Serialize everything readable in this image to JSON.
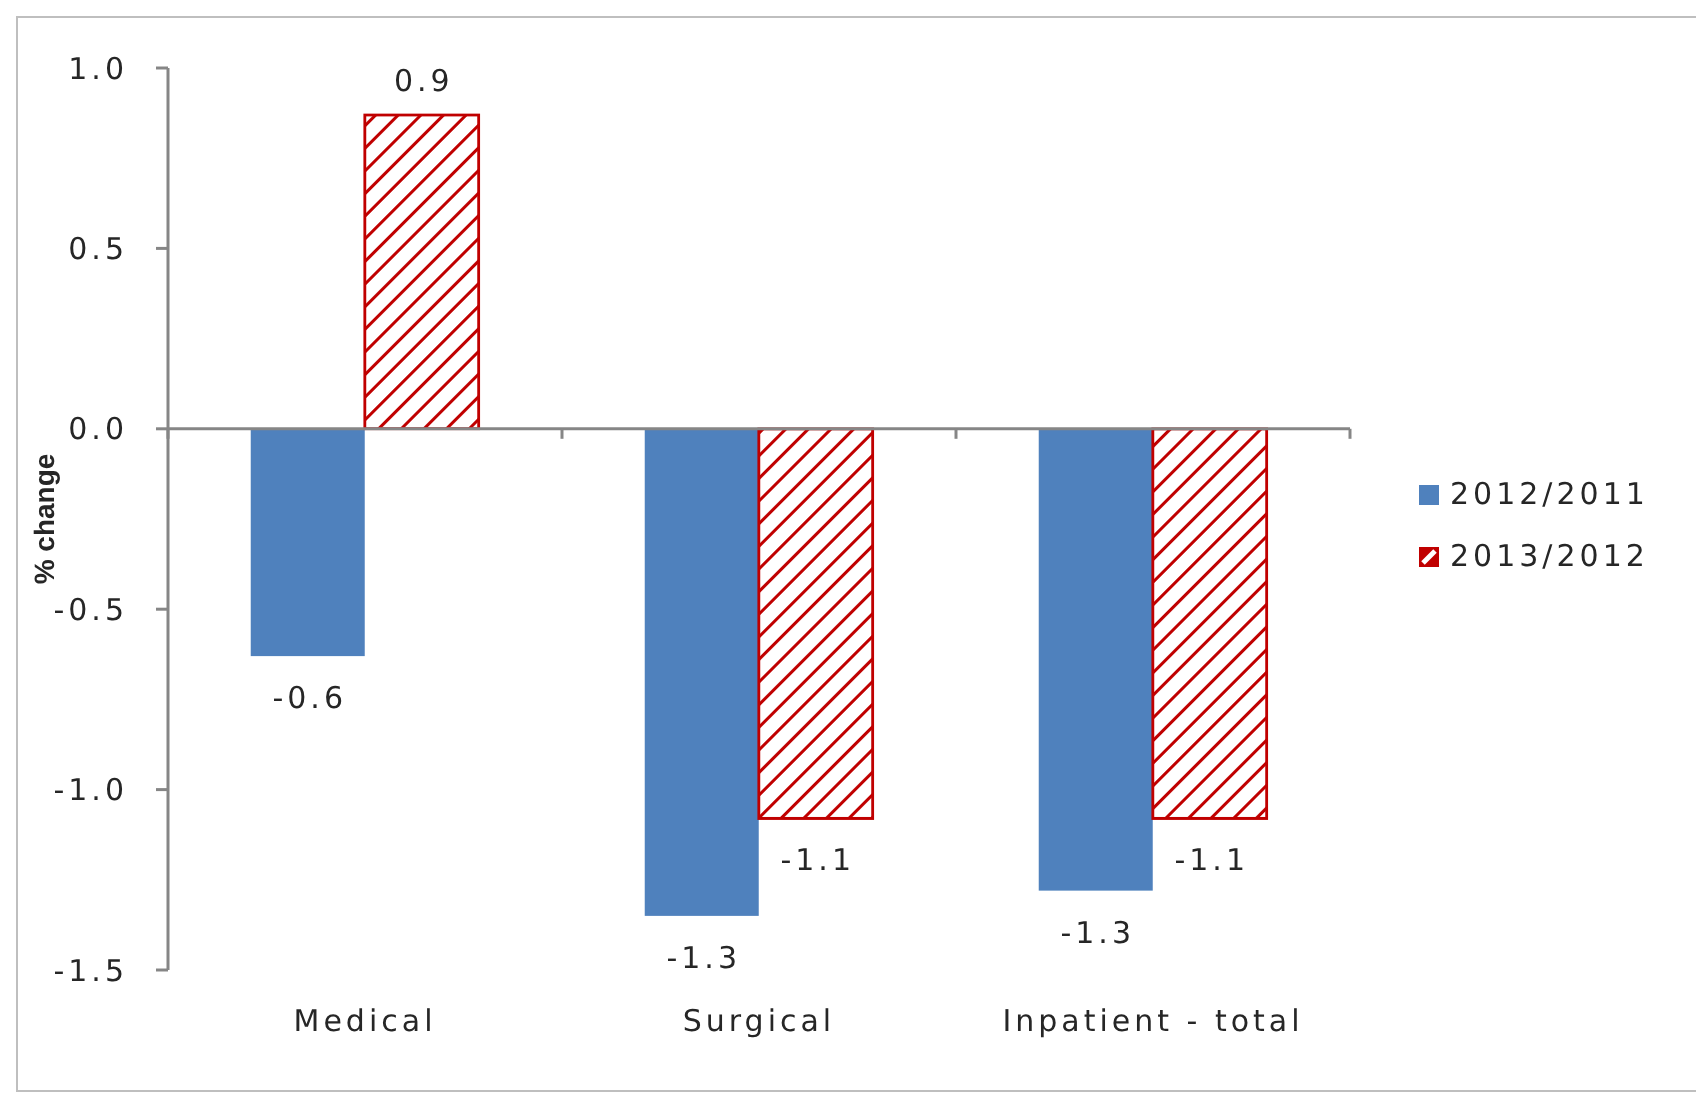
{
  "chart_data": {
    "type": "bar",
    "ylabel": "% change",
    "categories": [
      "Medical",
      "Surgical",
      "Inpatient - total"
    ],
    "series": [
      {
        "name": "2012/2011",
        "color": "#4f81bd",
        "values": [
          -0.63,
          -1.35,
          -1.28
        ],
        "value_labels": [
          "-0.6",
          "-1.3",
          "-1.3"
        ]
      },
      {
        "name": "2013/2012",
        "color": "#c00000",
        "values": [
          0.87,
          -1.08,
          -1.08
        ],
        "value_labels": [
          "0.9",
          "-1.1",
          "-1.1"
        ]
      }
    ],
    "ylim": [
      -1.5,
      1.0
    ],
    "yticks": [
      -1.5,
      {
        "value": -1,
        "label": "-1.0"
      },
      -0.5,
      {
        "value": 0,
        "label": "0.0"
      },
      0.5,
      {
        "value": 1,
        "label": "1.0"
      }
    ],
    "legend": "right"
  }
}
